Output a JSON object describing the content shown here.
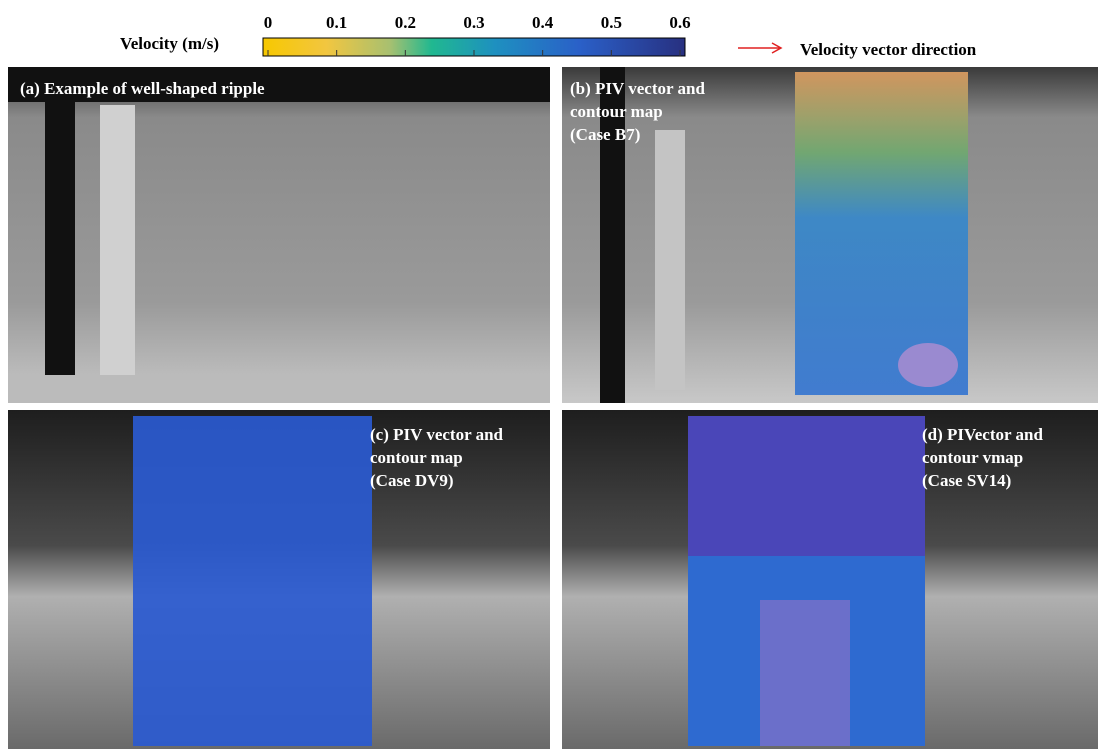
{
  "colorbar": {
    "label": "Velocity  (m/s)",
    "ticks": [
      0,
      0.1,
      0.2,
      0.3,
      0.4,
      0.5,
      0.6
    ]
  },
  "legend": {
    "text": "Velocity vector direction"
  },
  "panels": [
    {
      "lines": [
        "(a) Example of well-shaped ripple"
      ]
    },
    {
      "lines": [
        "(b) PIV vector and",
        "contour map",
        "(Case B7)"
      ]
    },
    {
      "lines": [
        "(c) PIV vector and",
        "contour map",
        "(Case DV9)"
      ]
    },
    {
      "lines": [
        "(d) PIVector and",
        "contour  vmap",
        "(Case SV14)"
      ]
    }
  ]
}
